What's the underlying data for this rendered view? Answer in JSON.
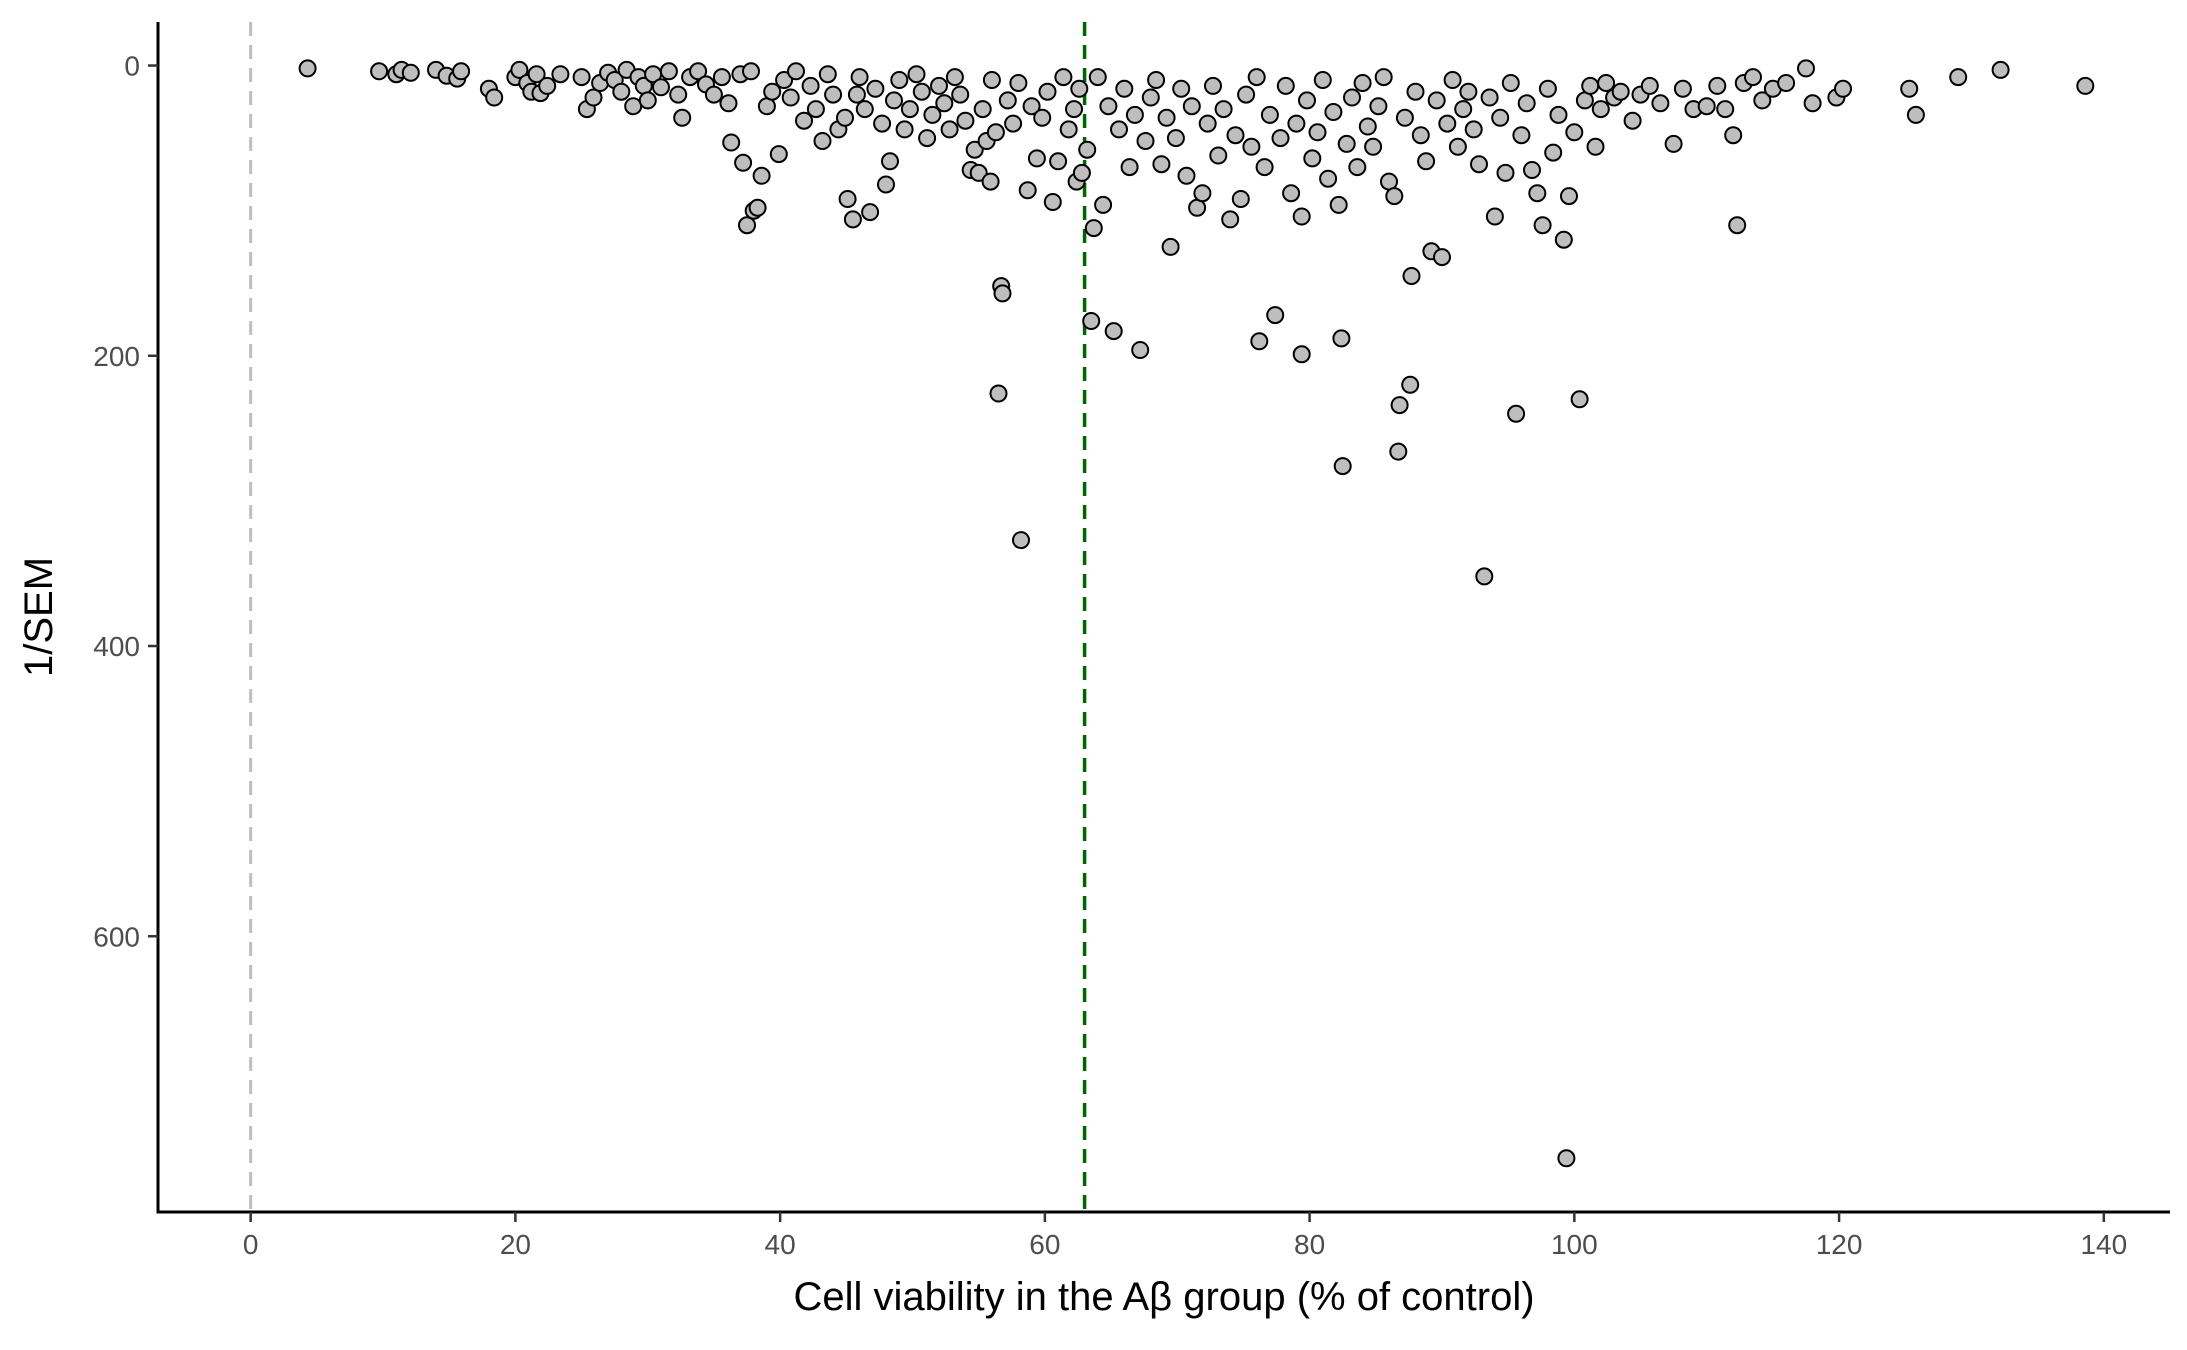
{
  "chart_data": {
    "type": "scatter",
    "title": "",
    "xlabel": "Cell viability in the Aβ group (% of control)",
    "ylabel": "1/SEM",
    "xlim": [
      -7,
      145
    ],
    "ylim": [
      790,
      -30
    ],
    "y_axis_reversed": true,
    "x_ticks": [
      0,
      20,
      40,
      60,
      80,
      100,
      120,
      140
    ],
    "x_tick_labels": [
      "0",
      "20",
      "40",
      "60",
      "80",
      "100",
      "120",
      "140"
    ],
    "y_ticks": [
      0,
      200,
      400,
      600
    ],
    "y_tick_labels": [
      "0",
      "200",
      "400",
      "600"
    ],
    "grid": false,
    "legend": "none",
    "reference_lines": [
      {
        "axis": "x",
        "value": 0,
        "style": "dashed",
        "color": "#bebebe"
      },
      {
        "axis": "x",
        "value": 63,
        "style": "dashed",
        "color": "#006400"
      }
    ],
    "point_fill": "#bebebe",
    "point_stroke": "#000000",
    "points": [
      [
        4.3,
        2
      ],
      [
        9.7,
        4
      ],
      [
        11,
        6
      ],
      [
        11.4,
        3
      ],
      [
        12.1,
        5
      ],
      [
        14,
        3
      ],
      [
        14.8,
        7
      ],
      [
        15.6,
        9
      ],
      [
        15.9,
        4
      ],
      [
        18,
        16
      ],
      [
        18.4,
        22
      ],
      [
        20,
        8
      ],
      [
        20.3,
        3
      ],
      [
        20.9,
        12
      ],
      [
        21.2,
        18
      ],
      [
        21.6,
        6
      ],
      [
        21.9,
        19
      ],
      [
        22.4,
        14
      ],
      [
        23.4,
        6
      ],
      [
        25,
        8
      ],
      [
        25.4,
        30
      ],
      [
        25.9,
        22
      ],
      [
        26.4,
        12
      ],
      [
        27,
        5
      ],
      [
        27.5,
        10
      ],
      [
        28,
        18
      ],
      [
        28.4,
        3
      ],
      [
        28.9,
        28
      ],
      [
        29.3,
        8
      ],
      [
        29.7,
        14
      ],
      [
        30,
        24
      ],
      [
        30.4,
        6
      ],
      [
        31,
        15
      ],
      [
        31.6,
        4
      ],
      [
        32.3,
        20
      ],
      [
        32.6,
        36
      ],
      [
        33.2,
        8
      ],
      [
        33.8,
        4
      ],
      [
        34.4,
        13
      ],
      [
        35,
        20
      ],
      [
        35.6,
        8
      ],
      [
        36.1,
        26
      ],
      [
        36.3,
        53
      ],
      [
        37,
        6
      ],
      [
        37.2,
        67
      ],
      [
        37.5,
        110
      ],
      [
        37.8,
        4
      ],
      [
        38,
        100
      ],
      [
        38.3,
        98
      ],
      [
        38.6,
        76
      ],
      [
        39,
        28
      ],
      [
        39.4,
        18
      ],
      [
        39.9,
        61
      ],
      [
        40.3,
        10
      ],
      [
        40.8,
        22
      ],
      [
        41.2,
        4
      ],
      [
        41.8,
        38
      ],
      [
        42.3,
        14
      ],
      [
        42.7,
        30
      ],
      [
        43.2,
        52
      ],
      [
        43.6,
        6
      ],
      [
        44,
        20
      ],
      [
        44.4,
        44
      ],
      [
        44.9,
        36
      ],
      [
        45.1,
        92
      ],
      [
        45.5,
        106
      ],
      [
        45.8,
        20
      ],
      [
        46,
        8
      ],
      [
        46.4,
        30
      ],
      [
        46.8,
        101
      ],
      [
        47.2,
        16
      ],
      [
        47.7,
        40
      ],
      [
        48,
        82
      ],
      [
        48.3,
        66
      ],
      [
        48.6,
        24
      ],
      [
        49,
        10
      ],
      [
        49.4,
        44
      ],
      [
        49.8,
        30
      ],
      [
        50.3,
        6
      ],
      [
        50.7,
        18
      ],
      [
        51.1,
        50
      ],
      [
        51.5,
        34
      ],
      [
        52,
        14
      ],
      [
        52.4,
        26
      ],
      [
        52.8,
        44
      ],
      [
        53.2,
        8
      ],
      [
        53.6,
        20
      ],
      [
        54,
        38
      ],
      [
        54.4,
        72
      ],
      [
        54.7,
        58
      ],
      [
        55,
        74
      ],
      [
        55.3,
        30
      ],
      [
        55.6,
        52
      ],
      [
        55.9,
        80
      ],
      [
        56,
        10
      ],
      [
        56.3,
        46
      ],
      [
        56.5,
        226
      ],
      [
        56.7,
        152
      ],
      [
        56.8,
        157
      ],
      [
        57.2,
        24
      ],
      [
        57.6,
        40
      ],
      [
        58,
        12
      ],
      [
        58.2,
        327
      ],
      [
        58.7,
        86
      ],
      [
        59,
        28
      ],
      [
        59.4,
        64
      ],
      [
        59.8,
        36
      ],
      [
        60.2,
        18
      ],
      [
        60.6,
        94
      ],
      [
        61,
        66
      ],
      [
        61.4,
        8
      ],
      [
        61.8,
        44
      ],
      [
        62.2,
        30
      ],
      [
        62.4,
        80
      ],
      [
        62.6,
        16
      ],
      [
        62.8,
        74
      ],
      [
        63.2,
        58
      ],
      [
        63.5,
        176
      ],
      [
        63.7,
        112
      ],
      [
        64,
        8
      ],
      [
        64.4,
        96
      ],
      [
        64.8,
        28
      ],
      [
        65.2,
        183
      ],
      [
        65.6,
        44
      ],
      [
        66,
        16
      ],
      [
        66.4,
        70
      ],
      [
        66.8,
        34
      ],
      [
        67.2,
        196
      ],
      [
        67.6,
        52
      ],
      [
        68,
        22
      ],
      [
        68.4,
        10
      ],
      [
        68.8,
        68
      ],
      [
        69.2,
        36
      ],
      [
        69.5,
        125
      ],
      [
        69.9,
        50
      ],
      [
        70.3,
        16
      ],
      [
        70.7,
        76
      ],
      [
        71.1,
        28
      ],
      [
        71.5,
        98
      ],
      [
        71.9,
        88
      ],
      [
        72.3,
        40
      ],
      [
        72.7,
        14
      ],
      [
        73.1,
        62
      ],
      [
        73.5,
        30
      ],
      [
        74,
        106
      ],
      [
        74.4,
        48
      ],
      [
        74.8,
        92
      ],
      [
        75.2,
        20
      ],
      [
        75.6,
        56
      ],
      [
        76,
        8
      ],
      [
        76.2,
        190
      ],
      [
        76.6,
        70
      ],
      [
        77,
        34
      ],
      [
        77.4,
        172
      ],
      [
        77.8,
        50
      ],
      [
        78.2,
        14
      ],
      [
        78.6,
        88
      ],
      [
        79,
        40
      ],
      [
        79.4,
        104
      ],
      [
        79.4,
        199
      ],
      [
        79.8,
        24
      ],
      [
        80.2,
        64
      ],
      [
        80.6,
        46
      ],
      [
        81,
        10
      ],
      [
        81.4,
        78
      ],
      [
        81.8,
        32
      ],
      [
        82.2,
        96
      ],
      [
        82.4,
        188
      ],
      [
        82.5,
        276
      ],
      [
        82.8,
        54
      ],
      [
        83.2,
        22
      ],
      [
        83.6,
        70
      ],
      [
        84,
        12
      ],
      [
        84.4,
        42
      ],
      [
        84.8,
        56
      ],
      [
        85.2,
        28
      ],
      [
        85.6,
        8
      ],
      [
        86,
        80
      ],
      [
        86.4,
        90
      ],
      [
        86.7,
        266
      ],
      [
        86.8,
        234
      ],
      [
        87.2,
        36
      ],
      [
        87.6,
        220
      ],
      [
        87.7,
        145
      ],
      [
        88,
        18
      ],
      [
        88.4,
        48
      ],
      [
        88.8,
        66
      ],
      [
        89.2,
        128
      ],
      [
        89.6,
        24
      ],
      [
        90,
        132
      ],
      [
        90.4,
        40
      ],
      [
        90.8,
        10
      ],
      [
        91.2,
        56
      ],
      [
        91.6,
        30
      ],
      [
        92,
        18
      ],
      [
        92.4,
        44
      ],
      [
        92.8,
        68
      ],
      [
        93.2,
        352
      ],
      [
        93.6,
        22
      ],
      [
        94,
        104
      ],
      [
        94.4,
        36
      ],
      [
        94.8,
        74
      ],
      [
        95.2,
        12
      ],
      [
        95.6,
        240
      ],
      [
        96,
        48
      ],
      [
        96.4,
        26
      ],
      [
        96.8,
        72
      ],
      [
        97.2,
        88
      ],
      [
        97.6,
        110
      ],
      [
        98,
        16
      ],
      [
        98.4,
        60
      ],
      [
        98.8,
        34
      ],
      [
        99.2,
        120
      ],
      [
        99.4,
        753
      ],
      [
        99.6,
        90
      ],
      [
        100,
        46
      ],
      [
        100.4,
        230
      ],
      [
        100.8,
        24
      ],
      [
        101.2,
        14
      ],
      [
        101.6,
        56
      ],
      [
        102,
        30
      ],
      [
        102.4,
        12
      ],
      [
        103,
        22
      ],
      [
        103.5,
        18
      ],
      [
        104.4,
        38
      ],
      [
        105,
        20
      ],
      [
        105.7,
        14
      ],
      [
        106.5,
        26
      ],
      [
        107.5,
        54
      ],
      [
        108.2,
        16
      ],
      [
        109,
        30
      ],
      [
        110,
        28
      ],
      [
        110.8,
        14
      ],
      [
        111.4,
        30
      ],
      [
        112,
        48
      ],
      [
        112.3,
        110
      ],
      [
        112.8,
        12
      ],
      [
        113.5,
        8
      ],
      [
        114.2,
        24
      ],
      [
        115,
        16
      ],
      [
        116,
        12
      ],
      [
        117.5,
        2
      ],
      [
        118,
        26
      ],
      [
        119.8,
        22
      ],
      [
        120.3,
        16
      ],
      [
        125.3,
        16
      ],
      [
        125.8,
        34
      ],
      [
        129,
        8
      ],
      [
        132.2,
        3
      ],
      [
        138.6,
        14
      ]
    ]
  }
}
